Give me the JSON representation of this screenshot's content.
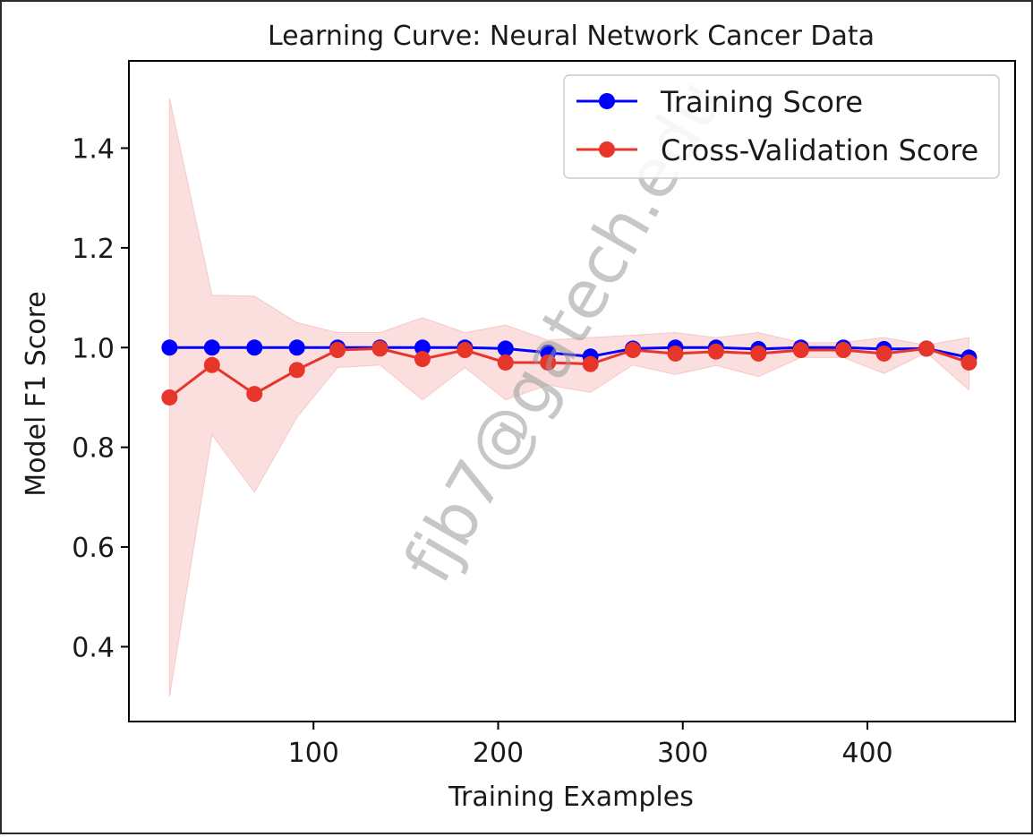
{
  "chart_data": {
    "type": "line",
    "title": "Learning Curve: Neural Network Cancer Data",
    "xlabel": "Training Examples",
    "ylabel": "Model F1 Score",
    "xlim": [
      0,
      480
    ],
    "ylim": [
      0.25,
      1.575
    ],
    "x_ticks": [
      100,
      200,
      300,
      400
    ],
    "y_ticks": [
      0.4,
      0.6,
      0.8,
      1.0,
      1.2,
      1.4
    ],
    "x": [
      22,
      45,
      68,
      91,
      113,
      136,
      159,
      182,
      204,
      227,
      250,
      273,
      296,
      318,
      341,
      364,
      387,
      409,
      432,
      455
    ],
    "series": [
      {
        "name": "Training Score",
        "color": "#0000ff",
        "values": [
          1.0,
          1.0,
          1.0,
          1.0,
          1.0,
          1.0,
          1.0,
          1.0,
          0.998,
          0.99,
          0.982,
          0.998,
          1.0,
          1.0,
          0.997,
          1.0,
          1.0,
          0.997,
          0.998,
          0.98
        ]
      },
      {
        "name": "Cross-Validation Score",
        "color": "#e8352a",
        "values": [
          0.9,
          0.965,
          0.907,
          0.955,
          0.995,
          0.998,
          0.977,
          0.995,
          0.97,
          0.97,
          0.967,
          0.995,
          0.988,
          0.992,
          0.988,
          0.995,
          0.995,
          0.988,
          0.998,
          0.97
        ],
        "band_upper": [
          1.5,
          1.105,
          1.103,
          1.05,
          1.03,
          1.03,
          1.06,
          1.03,
          1.045,
          1.015,
          1.02,
          1.025,
          1.03,
          1.02,
          1.03,
          1.01,
          1.01,
          1.02,
          1.005,
          1.02
        ],
        "band_lower": [
          0.3,
          0.825,
          0.71,
          0.86,
          0.96,
          0.965,
          0.895,
          0.96,
          0.895,
          0.925,
          0.91,
          0.965,
          0.946,
          0.964,
          0.942,
          0.98,
          0.98,
          0.948,
          0.99,
          0.915
        ],
        "band_color": "#f4aeae"
      }
    ],
    "legend_position": "top-right",
    "grid": false
  },
  "watermark": "fjb7@gatech.edu"
}
